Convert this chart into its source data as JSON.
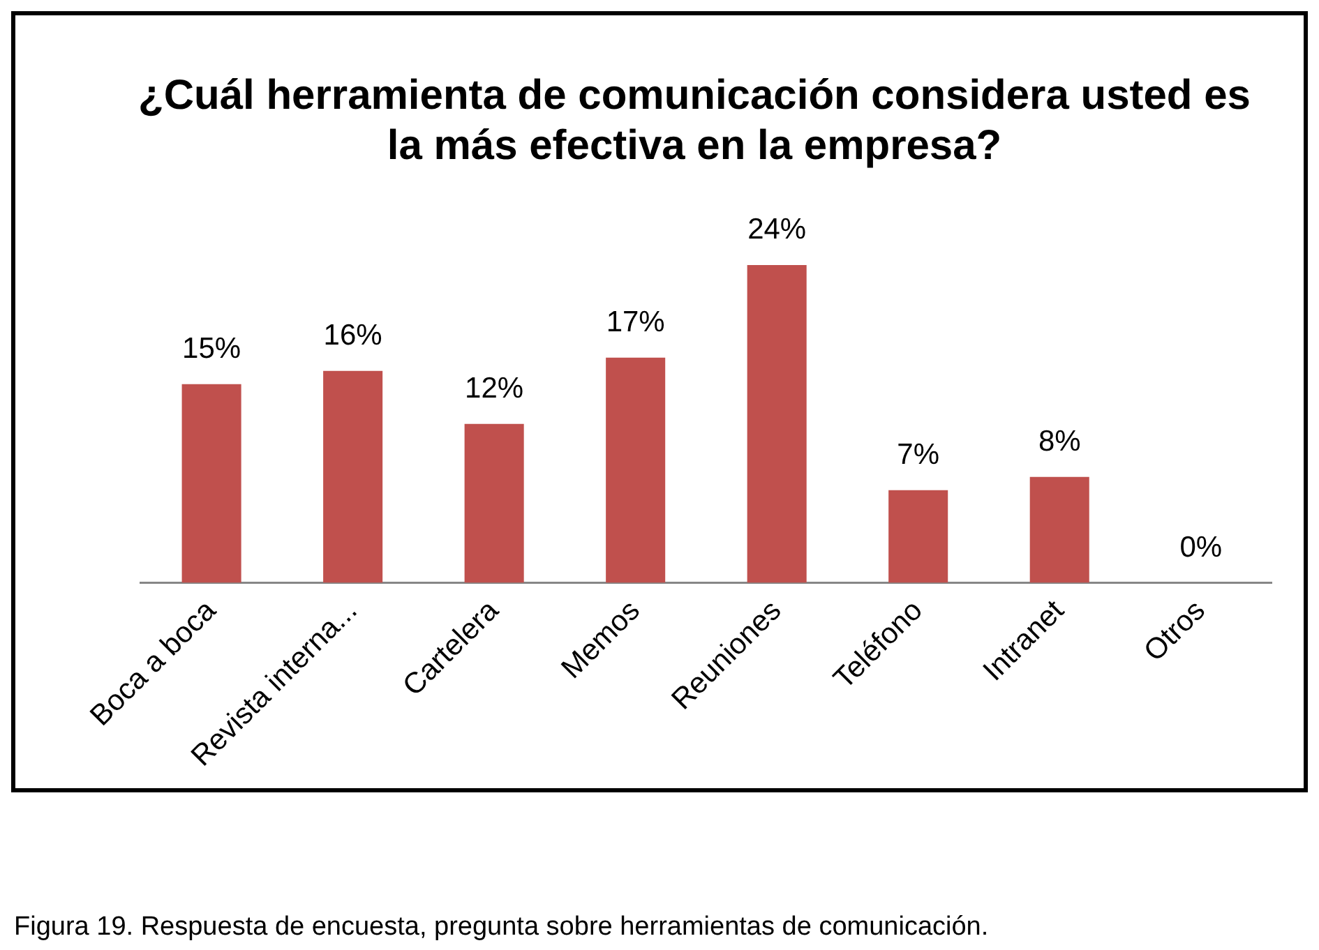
{
  "chart_data": {
    "type": "bar",
    "title": "¿Cuál herramienta de comunicación considera usted es la más efectiva en la empresa?",
    "categories": [
      "Boca a boca",
      "Revista interna...",
      "Cartelera",
      "Memos",
      "Reuniones",
      "Teléfono",
      "Intranet",
      "Otros"
    ],
    "values": [
      15,
      16,
      12,
      17,
      24,
      7,
      8,
      0
    ],
    "value_labels": [
      "15%",
      "16%",
      "12%",
      "17%",
      "24%",
      "7%",
      "8%",
      "0%"
    ],
    "color": "#c0504d",
    "grid": false,
    "legend": false,
    "annotations": [
      "Figura 19. Respuesta de encuesta, pregunta sobre herramientas de comunicación."
    ]
  }
}
